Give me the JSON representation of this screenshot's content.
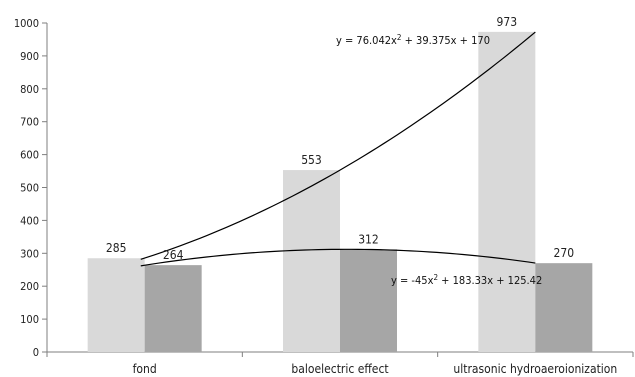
{
  "chart_data": {
    "type": "bar",
    "categories": [
      "fond",
      "baloelectric effect",
      "ultrasonic hydroaeroionization"
    ],
    "series": [
      {
        "values": [
          285,
          553,
          973
        ],
        "color": "#d9d9d9"
      },
      {
        "values": [
          264,
          312,
          270
        ],
        "color": "#a6a6a6"
      }
    ],
    "ylim": [
      0,
      1000
    ],
    "yticks": [
      0,
      100,
      200,
      300,
      400,
      500,
      600,
      700,
      800,
      900,
      1000
    ],
    "grid": false,
    "trendlines": [
      {
        "series": 0,
        "type": "polynomial",
        "order": 2,
        "coefficients": [
          76.042,
          39.375,
          170
        ],
        "equation": {
          "prefix": "y = 76.042x",
          "sup": "2",
          "suffix": " + 39.375x + 170"
        }
      },
      {
        "series": 1,
        "type": "polynomial",
        "order": 2,
        "coefficients": [
          -45,
          183.33,
          125.42
        ],
        "equation": {
          "prefix": "y = -45x",
          "sup": "2",
          "suffix": " + 183.33x + 125.42"
        }
      }
    ]
  }
}
